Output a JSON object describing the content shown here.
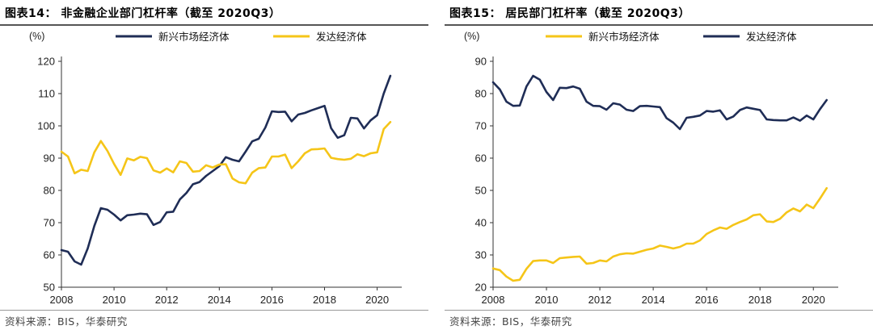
{
  "panels": [
    {
      "title": "图表14：  非金融企业部门杠杆率（截至 2020Q3）",
      "source": "资料来源：BIS，华泰研究"
    },
    {
      "title": "图表15：  居民部门杠杆率（截至 2020Q3）",
      "source": "资料来源：BIS，华泰研究"
    }
  ],
  "colors": {
    "navy": "#1f2d56",
    "gold": "#f5c518"
  },
  "chart_data": [
    {
      "type": "line",
      "title": "非金融企业部门杠杆率（截至 2020Q3）",
      "unit_label": "(%)",
      "x_start": 2008.0,
      "x_step": 0.25,
      "xlim": [
        2008,
        2020.75
      ],
      "x_ticks": [
        2008,
        2010,
        2012,
        2014,
        2016,
        2018,
        2020
      ],
      "ylim": [
        50,
        120
      ],
      "y_ticks": [
        50,
        60,
        70,
        80,
        90,
        100,
        110,
        120
      ],
      "grid": false,
      "legend_position": "top",
      "series": [
        {
          "name": "新兴市场经济体",
          "color": "#1f2d56",
          "values": [
            61.5,
            61,
            58,
            57,
            62,
            69,
            74.5,
            74,
            72.5,
            70.7,
            72.3,
            72.5,
            72.8,
            72.6,
            69.3,
            70.2,
            73.2,
            73.4,
            77.2,
            79.2,
            81.9,
            82.6,
            84.5,
            86,
            87.5,
            90.3,
            89.5,
            89,
            92,
            95.2,
            96,
            99.5,
            104.5,
            104.3,
            104.4,
            101.4,
            103.5,
            104,
            104.8,
            105.5,
            106.2,
            99.3,
            96.3,
            97.1,
            102.5,
            102.3,
            99.2,
            101.7,
            103.3,
            110,
            115.5
          ]
        },
        {
          "name": "发达经济体",
          "color": "#f5c518",
          "values": [
            92,
            90.5,
            85.3,
            86.4,
            86,
            91.8,
            95.3,
            92.2,
            88.2,
            84.8,
            89.9,
            89.3,
            90.4,
            90,
            86.2,
            85.5,
            86.8,
            85.6,
            89,
            88.5,
            85.8,
            86,
            87.8,
            87.1,
            88,
            88.1,
            83.7,
            82.5,
            82.2,
            85.5,
            86.9,
            87.1,
            90.5,
            90.5,
            91.1,
            86.9,
            89,
            91.5,
            92.7,
            92.8,
            93,
            90.1,
            89.7,
            89.5,
            89.8,
            91.2,
            90.6,
            91.5,
            91.8,
            99,
            101.2
          ]
        }
      ]
    },
    {
      "type": "line",
      "title": "居民部门杠杆率（截至 2020Q3）",
      "unit_label": "(%)",
      "x_start": 2008.0,
      "x_step": 0.25,
      "xlim": [
        2008,
        2020.75
      ],
      "x_ticks": [
        2008,
        2010,
        2012,
        2014,
        2016,
        2018,
        2020
      ],
      "ylim": [
        20,
        90
      ],
      "y_ticks": [
        20,
        30,
        40,
        50,
        60,
        70,
        80,
        90
      ],
      "grid": false,
      "legend_position": "top",
      "series": [
        {
          "name": "新兴市场经济体",
          "color": "#f5c518",
          "values": [
            25.8,
            25.3,
            23.3,
            22,
            22.3,
            25.7,
            28.1,
            28.3,
            28.3,
            27.5,
            29,
            29.2,
            29.4,
            29.5,
            27.3,
            27.5,
            28.3,
            28,
            29.5,
            30.2,
            30.5,
            30.4,
            31,
            31.6,
            32,
            32.9,
            32.5,
            32,
            32.5,
            33.5,
            33.5,
            34.5,
            36.5,
            37.6,
            38.5,
            38.1,
            39.3,
            40.2,
            41,
            42.3,
            42.6,
            40.4,
            40.2,
            41.2,
            43.2,
            44.4,
            43.5,
            45.6,
            44.5,
            47.5,
            50.7
          ]
        },
        {
          "name": "发达经济体",
          "color": "#1f2d56",
          "values": [
            83.5,
            81.3,
            77.5,
            76.2,
            76.3,
            82.2,
            85.5,
            84.3,
            80.5,
            78,
            81.8,
            81.7,
            82.2,
            81.5,
            77.5,
            76.2,
            76.1,
            75,
            77,
            76.6,
            75,
            74.6,
            76.1,
            76.2,
            76,
            75.8,
            72.4,
            71,
            69,
            72.5,
            72.8,
            73.2,
            74.6,
            74.4,
            74.8,
            72,
            72.9,
            74.9,
            75.7,
            75.3,
            74.9,
            72,
            71.8,
            71.7,
            71.7,
            72.6,
            71.6,
            73.2,
            72,
            75.2,
            78
          ]
        }
      ]
    }
  ]
}
